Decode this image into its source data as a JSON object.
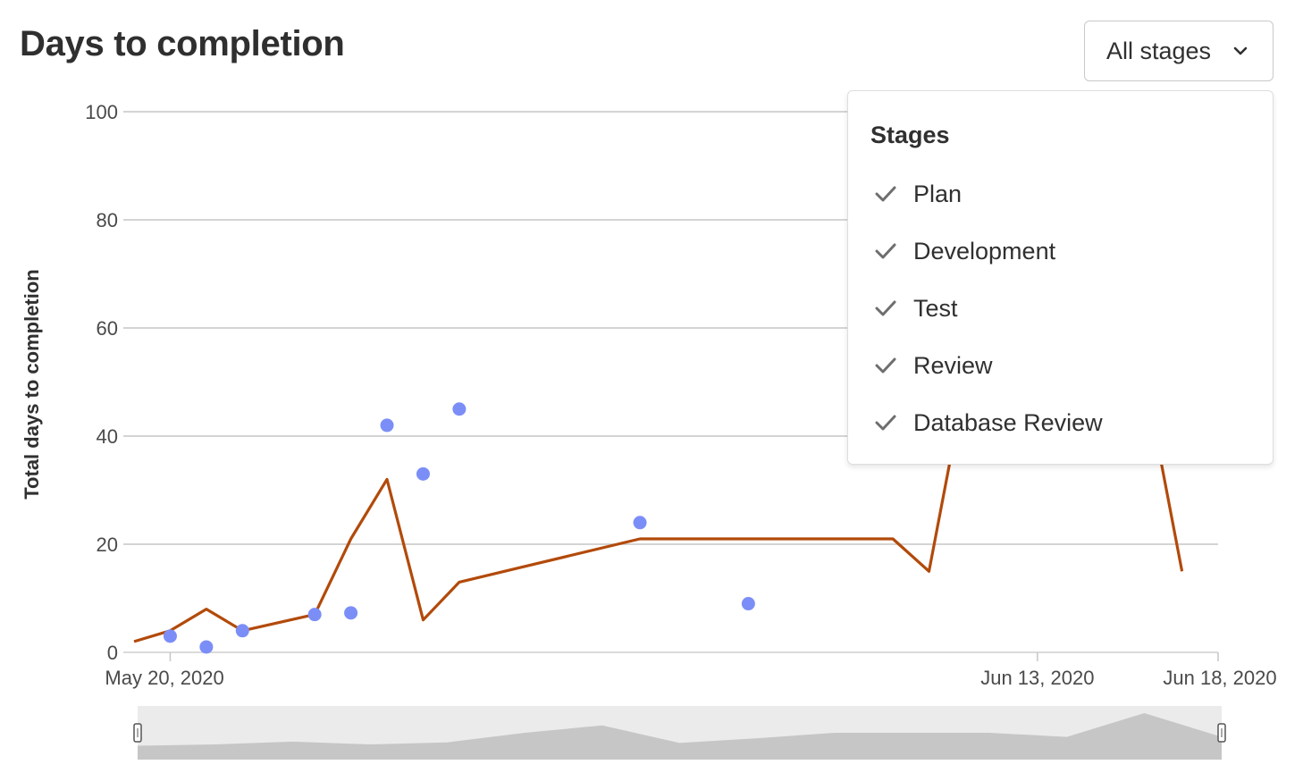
{
  "header": {
    "title": "Days to completion"
  },
  "filter": {
    "button_label": "All stages",
    "menu_header": "Stages",
    "stages": [
      {
        "label": "Plan",
        "checked": true
      },
      {
        "label": "Development",
        "checked": true
      },
      {
        "label": "Test",
        "checked": true
      },
      {
        "label": "Review",
        "checked": true
      },
      {
        "label": "Database Review",
        "checked": true
      }
    ]
  },
  "chart_data": {
    "type": "line",
    "title": "Days to completion",
    "ylabel": "Total days to completion",
    "xlabel": "",
    "ylim": [
      0,
      100
    ],
    "yticks": [
      0,
      20,
      40,
      60,
      80,
      100
    ],
    "xlim": [
      "2020-05-19",
      "2020-06-18"
    ],
    "xtick_labels": [
      {
        "date": "2020-05-20",
        "label": "May 20, 2020"
      },
      {
        "date": "2020-06-13",
        "label": "Jun 13, 2020"
      },
      {
        "date": "2020-06-18",
        "label": "Jun 18, 2020"
      }
    ],
    "grid": true,
    "series": [
      {
        "type": "line",
        "color": "#b24a0a",
        "x": [
          "2020-05-19",
          "2020-05-20",
          "2020-05-21",
          "2020-05-22",
          "2020-05-24",
          "2020-05-25",
          "2020-05-26",
          "2020-05-27",
          "2020-05-28",
          "2020-06-02",
          "2020-06-05",
          "2020-06-09",
          "2020-06-10",
          "2020-06-11",
          "2020-06-12",
          "2020-06-13",
          "2020-06-14",
          "2020-06-15",
          "2020-06-16",
          "2020-06-17"
        ],
        "values": [
          2,
          4,
          8,
          4,
          7,
          21,
          32,
          6,
          13,
          21,
          21,
          21,
          15,
          50,
          50,
          50,
          50,
          50,
          50,
          15
        ]
      },
      {
        "type": "scatter",
        "color": "#7b8ef7",
        "x": [
          "2020-05-20",
          "2020-05-21",
          "2020-05-22",
          "2020-05-24",
          "2020-05-25",
          "2020-05-26",
          "2020-05-27",
          "2020-05-28",
          "2020-06-02",
          "2020-06-05"
        ],
        "values": [
          3,
          1,
          4,
          7,
          7.3,
          42,
          33,
          45,
          24,
          9
        ]
      }
    ],
    "navigator": {
      "values": [
        2,
        4,
        8,
        4,
        7,
        21,
        32,
        6,
        13,
        21,
        21,
        21,
        15,
        50,
        15
      ]
    }
  }
}
